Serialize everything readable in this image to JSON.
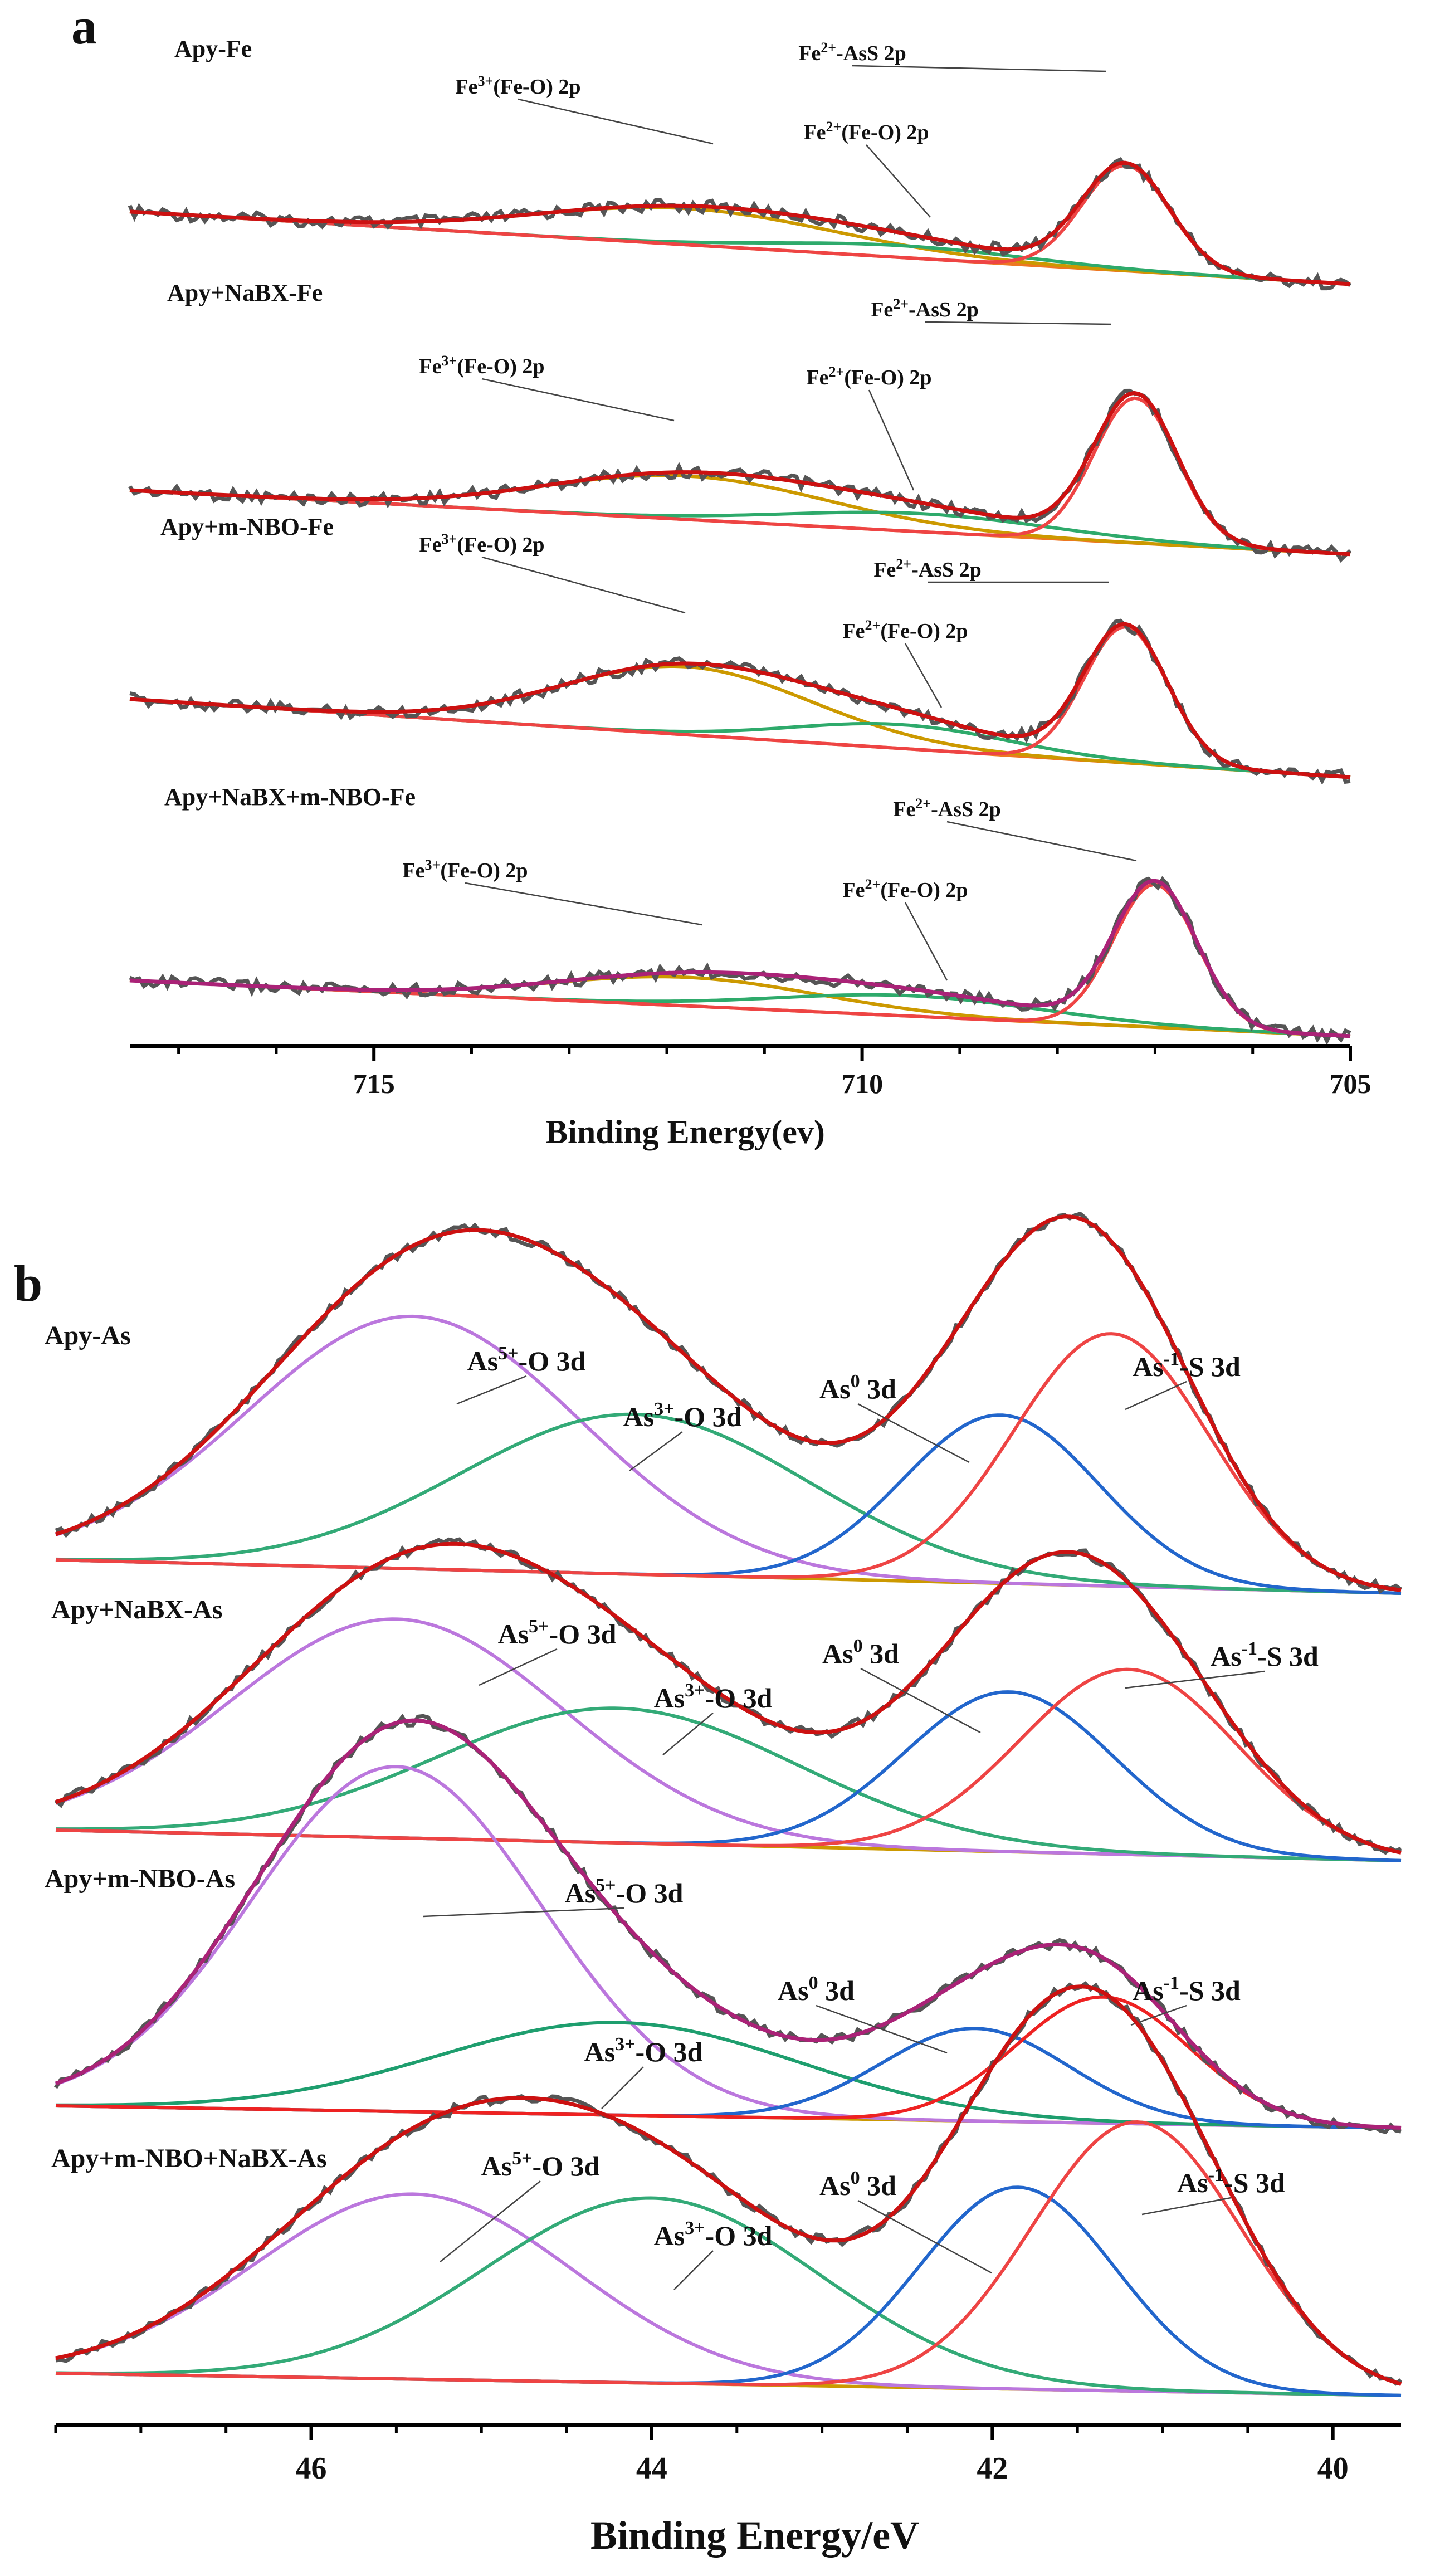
{
  "chart_data": [
    {
      "type": "line",
      "panel": "a",
      "title": "",
      "xlabel": "Binding Energy(ev)",
      "ylabel": "",
      "xlim": [
        717.5,
        705
      ],
      "x_ticks": [
        715,
        710,
        705
      ],
      "traces": [
        {
          "sample": "Apy-Fe",
          "components": [
            {
              "name": "Fe3+(Fe-O) 2p",
              "center": 711.8,
              "fwhm": 3.6,
              "amplitude": 0.55,
              "color": "#cc9900"
            },
            {
              "name": "Fe2+(Fe-O) 2p",
              "center": 709.6,
              "fwhm": 3.0,
              "amplitude": 0.18,
              "color": "#2eaa6b"
            },
            {
              "name": "Fe2+-AsS 2p",
              "center": 707.3,
              "fwhm": 1.05,
              "amplitude": 1.6,
              "color": "#ee4444"
            }
          ],
          "background": {
            "left": 0.0,
            "right": 0.1
          }
        },
        {
          "sample": "Apy+NaBX-Fe",
          "components": [
            {
              "name": "Fe3+(Fe-O) 2p",
              "center": 711.8,
              "fwhm": 3.4,
              "amplitude": 0.6,
              "color": "#cc9900"
            },
            {
              "name": "Fe2+(Fe-O) 2p",
              "center": 709.4,
              "fwhm": 3.2,
              "amplitude": 0.25,
              "color": "#2eaa6b"
            },
            {
              "name": "Fe2+-AsS 2p",
              "center": 707.2,
              "fwhm": 1.0,
              "amplitude": 2.0,
              "color": "#ee4444"
            }
          ],
          "background": {
            "left": 0.0,
            "right": 0.1
          }
        },
        {
          "sample": "Apy+m-NBO-Fe",
          "components": [
            {
              "name": "Fe3+(Fe-O) 2p",
              "center": 711.8,
              "fwhm": 3.0,
              "amplitude": 1.0,
              "color": "#cc9900"
            },
            {
              "name": "Fe2+(Fe-O) 2p",
              "center": 709.6,
              "fwhm": 2.6,
              "amplitude": 0.35,
              "color": "#2eaa6b"
            },
            {
              "name": "Fe2+-AsS 2p",
              "center": 707.3,
              "fwhm": 1.0,
              "amplitude": 2.0,
              "color": "#ee4444"
            }
          ],
          "background": {
            "left": 0.0,
            "right": 0.1
          }
        },
        {
          "sample": "Apy+NaBX+m-NBO-Fe",
          "components": [
            {
              "name": "Fe3+(Fe-O) 2p",
              "center": 711.8,
              "fwhm": 3.2,
              "amplitude": 0.42,
              "color": "#cc9900"
            },
            {
              "name": "Fe2+(Fe-O) 2p",
              "center": 709.5,
              "fwhm": 3.2,
              "amplitude": 0.3,
              "color": "#2eaa6b"
            },
            {
              "name": "Fe2+-AsS 2p",
              "center": 707.0,
              "fwhm": 1.0,
              "amplitude": 2.1,
              "color": "#ee4444"
            }
          ],
          "background": {
            "left": 0.0,
            "right": 0.1
          }
        }
      ]
    },
    {
      "type": "line",
      "panel": "b",
      "title": "",
      "xlabel": "Binding Energy/eV",
      "ylabel": "",
      "xlim": [
        47.5,
        39.6
      ],
      "x_ticks": [
        46,
        44,
        42,
        40
      ],
      "traces": [
        {
          "sample": "Apy-As",
          "components": [
            {
              "name": "As5+-O 3d",
              "center": 45.4,
              "fwhm": 2.3,
              "amplitude": 1.5,
              "color": "#bb77dd"
            },
            {
              "name": "As3+-O 3d",
              "center": 44.1,
              "fwhm": 2.4,
              "amplitude": 0.95,
              "color": "#33aa77"
            },
            {
              "name": "As0 3d",
              "center": 41.95,
              "fwhm": 1.35,
              "amplitude": 1.0,
              "color": "#2266cc"
            },
            {
              "name": "As-1-S 3d",
              "center": 41.3,
              "fwhm": 1.35,
              "amplitude": 1.5,
              "color": "#ee4444"
            }
          ],
          "background": {
            "left": 0.0,
            "right": 0.0
          }
        },
        {
          "sample": "Apy+NaBX-As",
          "components": [
            {
              "name": "As5+-O 3d",
              "center": 45.5,
              "fwhm": 2.3,
              "amplitude": 1.3,
              "color": "#bb77dd"
            },
            {
              "name": "As3+-O 3d",
              "center": 44.2,
              "fwhm": 2.5,
              "amplitude": 0.8,
              "color": "#33aa77"
            },
            {
              "name": "As0 3d",
              "center": 41.9,
              "fwhm": 1.45,
              "amplitude": 0.95,
              "color": "#2266cc"
            },
            {
              "name": "As-1-S 3d",
              "center": 41.2,
              "fwhm": 1.5,
              "amplitude": 1.1,
              "color": "#ee4444"
            }
          ],
          "background": {
            "left": 0.0,
            "right": 0.0
          }
        },
        {
          "sample": "Apy+m-NBO-As",
          "components": [
            {
              "name": "As5+-O 3d",
              "center": 45.5,
              "fwhm": 2.0,
              "amplitude": 2.05,
              "color": "#bb77dd"
            },
            {
              "name": "As3+-O 3d",
              "center": 44.2,
              "fwhm": 2.5,
              "amplitude": 0.55,
              "color": "#1e9e6e"
            },
            {
              "name": "As0 3d",
              "center": 42.1,
              "fwhm": 1.3,
              "amplitude": 0.55,
              "color": "#2266cc"
            },
            {
              "name": "As-1-S 3d",
              "center": 41.35,
              "fwhm": 1.2,
              "amplitude": 0.75,
              "color": "#ee2222"
            }
          ],
          "background": {
            "left": 0.0,
            "right": 0.0
          }
        },
        {
          "sample": "Apy+m-NBO+NaBX-As",
          "components": [
            {
              "name": "As5+-O 3d",
              "center": 45.4,
              "fwhm": 2.2,
              "amplitude": 1.1,
              "color": "#bb77dd"
            },
            {
              "name": "As3+-O 3d",
              "center": 44.0,
              "fwhm": 2.3,
              "amplitude": 1.1,
              "color": "#33aa77"
            },
            {
              "name": "As0 3d",
              "center": 41.85,
              "fwhm": 1.35,
              "amplitude": 1.2,
              "color": "#2266cc"
            },
            {
              "name": "As-1-S 3d",
              "center": 41.15,
              "fwhm": 1.45,
              "amplitude": 1.6,
              "color": "#ee4444"
            }
          ],
          "background": {
            "left": 0.0,
            "right": 0.0
          }
        }
      ]
    }
  ],
  "panel_letters": {
    "a": "a",
    "b": "b"
  },
  "sample_labels": {
    "a": [
      "Apy-Fe",
      "Apy+NaBX-Fe",
      "Apy+m-NBO-Fe",
      "Apy+NaBX+m-NBO-Fe"
    ],
    "b": [
      "Apy-As",
      "Apy+NaBX-As",
      "Apy+m-NBO-As",
      "Apy+m-NBO+NaBX-As"
    ]
  },
  "peak_names_a": {
    "fe3": {
      "base": "Fe",
      "sup": "3+",
      "rest": "(Fe-O) 2p"
    },
    "fe2o": {
      "base": "Fe",
      "sup": "2+",
      "rest": "(Fe-O) 2p"
    },
    "fe2s": {
      "base": "Fe",
      "sup": "2+",
      "rest": "-AsS 2p"
    }
  },
  "peak_names_b": {
    "as5": {
      "base": "As",
      "sup": "5+",
      "rest": "-O 3d"
    },
    "as3": {
      "base": "As",
      "sup": "3+",
      "rest": "-O 3d"
    },
    "as0": {
      "base": "As",
      "sup": "0",
      "rest": " 3d"
    },
    "asm1": {
      "base": "As",
      "sup": "-1",
      "rest": "-S 3d"
    }
  },
  "colors": {
    "raw": "#555555",
    "envelope_a": "#cc1111",
    "envelope_b": "#cc1111",
    "envelope_purple": "#aa2277",
    "background_a": "#ee7722",
    "background_b": "#cc9900",
    "axis": "#000000"
  }
}
